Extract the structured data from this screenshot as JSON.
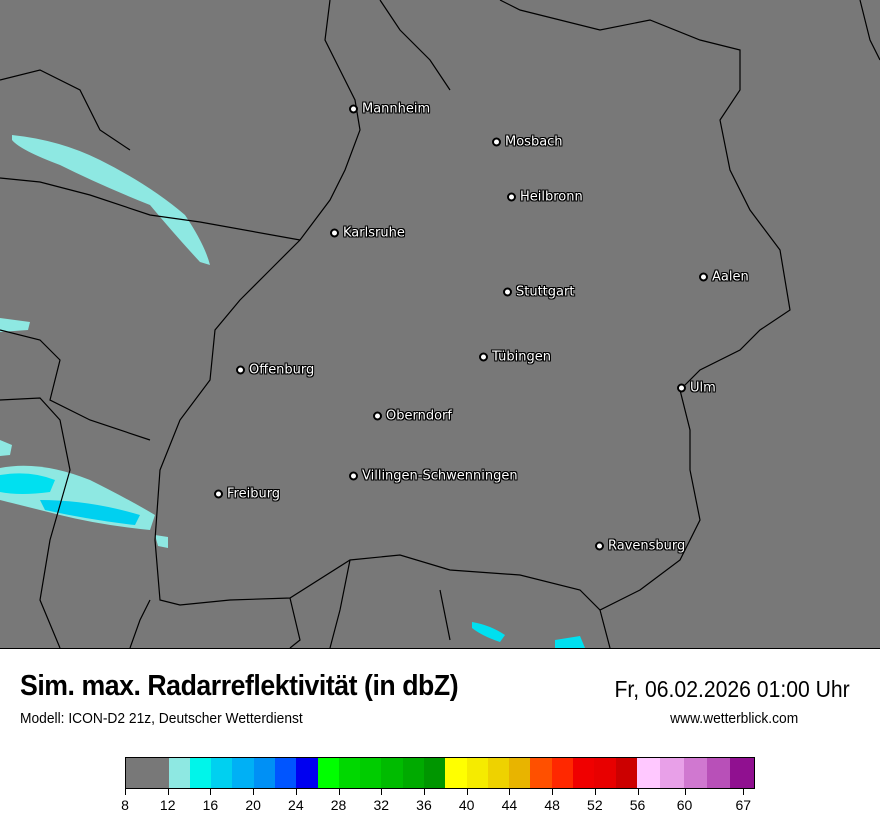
{
  "map": {
    "background_color": "#787878",
    "cities": [
      "Mannheim",
      "Mosbach",
      "Heilbronn",
      "Karlsruhe",
      "Aalen",
      "Stuttgart",
      "Tübingen",
      "Offenburg",
      "Ulm",
      "Oberndorf",
      "Villingen-Schwenningen",
      "Freiburg",
      "Ravensburg"
    ]
  },
  "header": {
    "title": "Sim. max. Radarreflektivität (in dbZ)",
    "datetime": "Fr, 06.02.2026 01:00 Uhr",
    "model": "Modell: ICON-D2 21z, Deutscher Wetterdienst",
    "website": "www.wetterblick.com"
  },
  "legend": {
    "unit": "dbZ",
    "tick_labels": [
      "8",
      "12",
      "16",
      "20",
      "24",
      "28",
      "32",
      "36",
      "40",
      "44",
      "48",
      "52",
      "56",
      "60",
      "67"
    ],
    "colors": [
      "#787878",
      "#8ee8e2",
      "#00f5ea",
      "#00d0f0",
      "#00b0f5",
      "#0090f5",
      "#0055ff",
      "#0000f0",
      "#00ff00",
      "#00d800",
      "#00cc00",
      "#00bb00",
      "#00aa00",
      "#009600",
      "#ffff00",
      "#f5eb00",
      "#eed200",
      "#e8b400",
      "#ff5000",
      "#ff2800",
      "#f00000",
      "#e80000",
      "#cc0000",
      "#ffc8ff",
      "#e8a0e8",
      "#d078d0",
      "#b850b8",
      "#901090"
    ]
  }
}
